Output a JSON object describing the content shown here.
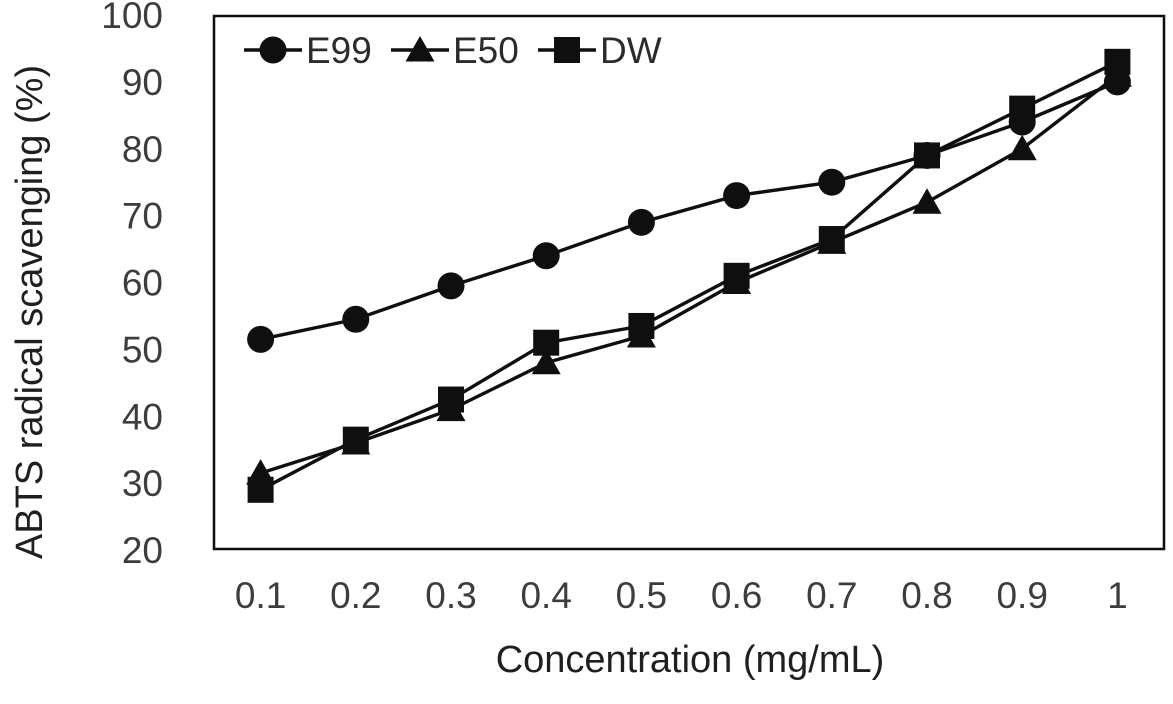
{
  "chart_data": {
    "type": "line",
    "title": "",
    "xlabel": "Concentration (mg/mL)",
    "ylabel": "ABTS radical scavenging (%)",
    "categories": [
      "0.1",
      "0.2",
      "0.3",
      "0.4",
      "0.5",
      "0.6",
      "0.7",
      "0.8",
      "0.9",
      "1"
    ],
    "ylim": [
      20,
      100
    ],
    "ytick_step": 10,
    "ytick_labels": [
      "20",
      "30",
      "40",
      "50",
      "60",
      "70",
      "80",
      "90",
      "100"
    ],
    "grid": false,
    "legend_position": "top-inside-horizontal",
    "legend_entries": [
      "E99",
      "E50",
      "DW"
    ],
    "series": [
      {
        "name": "E99",
        "marker": "circle",
        "color": "#0f0f0f",
        "values": [
          51.5,
          54.5,
          59.5,
          64,
          69,
          73,
          75,
          79,
          84,
          90
        ]
      },
      {
        "name": "E50",
        "marker": "triangle",
        "color": "#0f0f0f",
        "values": [
          31.5,
          36,
          41,
          48,
          52,
          60,
          66,
          72,
          80,
          91
        ]
      },
      {
        "name": "DW",
        "marker": "square",
        "color": "#0f0f0f",
        "values": [
          29,
          36.5,
          42.5,
          51,
          53.5,
          61,
          66.5,
          79,
          86,
          93
        ]
      }
    ]
  },
  "colors": {
    "background": "#ffffff",
    "plot_border": "#0d0d0d",
    "series_line": "#0f0f0f",
    "tick_text": "#3d3d3d",
    "axis_title_text": "#1f1f1f"
  }
}
